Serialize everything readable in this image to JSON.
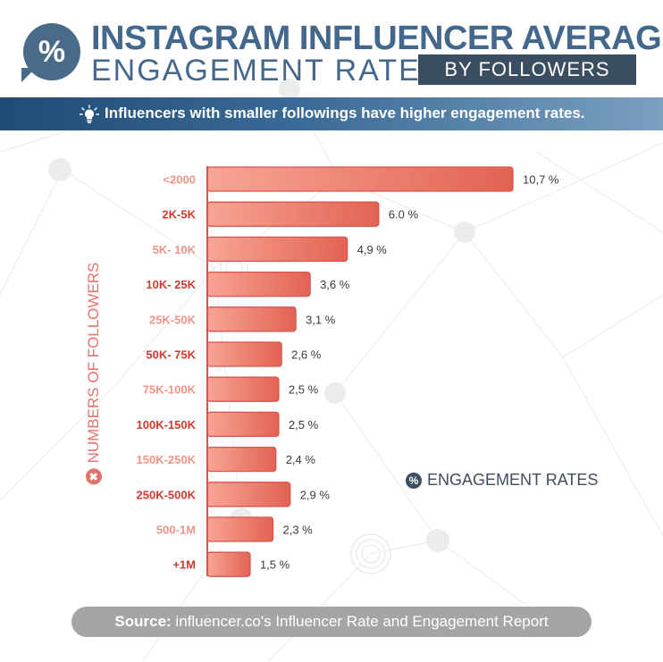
{
  "header": {
    "badge_symbol": "%",
    "title_line1": "INSTAGRAM INFLUENCER AVERAGE",
    "title_line2": "ENGAGEMENT RATES",
    "title_tag": "BY FOLLOWERS",
    "subtitle": "Influencers with smaller followings have higher engagement rates.",
    "subtitle_icon": "lightbulb-icon"
  },
  "colors": {
    "title": "#44678c",
    "bar_light": "#f8a596",
    "bar_dark": "#e26352",
    "bar_border": "#d9534f",
    "label_dark": "#d23a2e",
    "label_light": "#ef9489",
    "accent_dark": "#3c4e61"
  },
  "chart_data": {
    "type": "bar",
    "orientation": "horizontal",
    "ylabel": "NUMBERS OF FOLLOWERS",
    "legend": "ENGAGEMENT RATES",
    "legend_icon": "percent-icon",
    "categories": [
      "<2000",
      "2K-5K",
      "5K- 10K",
      "10K- 25K",
      "25K-50K",
      "50K- 75K",
      "75K-100K",
      "100K-150K",
      "150K-250K",
      "250K-500K",
      "500-1M",
      "+1M"
    ],
    "values": [
      10.7,
      6.0,
      4.9,
      3.6,
      3.1,
      2.6,
      2.5,
      2.5,
      2.4,
      2.9,
      2.3,
      1.5
    ],
    "value_labels": [
      "10,7 %",
      "6.0 %",
      "4,9 %",
      "3,6 %",
      "3,1 %",
      "2,6 %",
      "2,5 %",
      "2,5 %",
      "2,4 %",
      "2,9 %",
      "2,3 %",
      "1,5 %"
    ],
    "label_tone": [
      "light",
      "dark",
      "light",
      "dark",
      "light",
      "dark",
      "light",
      "dark",
      "light",
      "dark",
      "light",
      "dark"
    ],
    "xlim": [
      0,
      10.7
    ]
  },
  "footer": {
    "source_label": "Source:",
    "source_text": " influencer.co's Influencer Rate and Engagement Report"
  }
}
